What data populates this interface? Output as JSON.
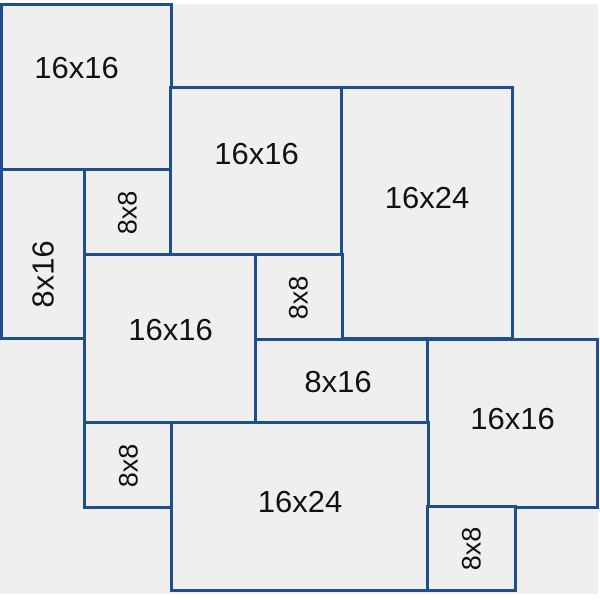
{
  "colors": {
    "border": "#1f4e8c",
    "fill": "#efefef",
    "text": "#111111"
  },
  "tiles": [
    {
      "label": "16x16"
    },
    {
      "label": "16x16"
    },
    {
      "label": "16x24"
    },
    {
      "label": "8x16"
    },
    {
      "label": "8x8"
    },
    {
      "label": "16x16"
    },
    {
      "label": "8x8"
    },
    {
      "label": "8x16"
    },
    {
      "label": "16x16"
    },
    {
      "label": "8x8"
    },
    {
      "label": "16x24"
    },
    {
      "label": "8x8"
    }
  ]
}
